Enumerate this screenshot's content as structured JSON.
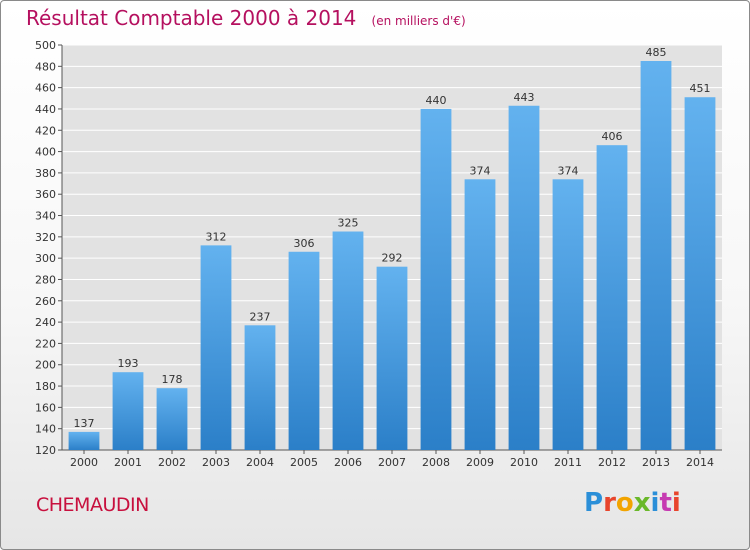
{
  "header": {
    "title": "Résultat Comptable 2000 à 2014",
    "subtitle": "(en milliers d'€)"
  },
  "commune": "CHEMAUDIN",
  "logo": {
    "text": "Proxiti",
    "colors": [
      "#2b8fd8",
      "#e8452c",
      "#f2a400",
      "#6ab82a",
      "#2b8fd8",
      "#c63bb1",
      "#e8452c"
    ]
  },
  "colors": {
    "title": "#b5105f",
    "commune": "#c8103e",
    "bar_light": "#63b2ef",
    "bar_dark": "#2b7fc8",
    "grid": "#ffffff",
    "plot_bg": "#e2e2e2"
  },
  "chart_data": {
    "type": "bar",
    "title": "Résultat Comptable 2000 à 2014",
    "subtitle": "(en milliers d'€)",
    "categories": [
      "2000",
      "2001",
      "2002",
      "2003",
      "2004",
      "2005",
      "2006",
      "2007",
      "2008",
      "2009",
      "2010",
      "2011",
      "2012",
      "2013",
      "2014"
    ],
    "values": [
      137,
      193,
      178,
      312,
      237,
      306,
      325,
      292,
      440,
      374,
      443,
      374,
      406,
      485,
      451
    ],
    "ylim": [
      120,
      500
    ],
    "yticks": [
      120,
      140,
      160,
      180,
      200,
      220,
      240,
      260,
      280,
      300,
      320,
      340,
      360,
      380,
      400,
      420,
      440,
      460,
      480,
      500
    ],
    "grid": true,
    "data_labels": true
  }
}
